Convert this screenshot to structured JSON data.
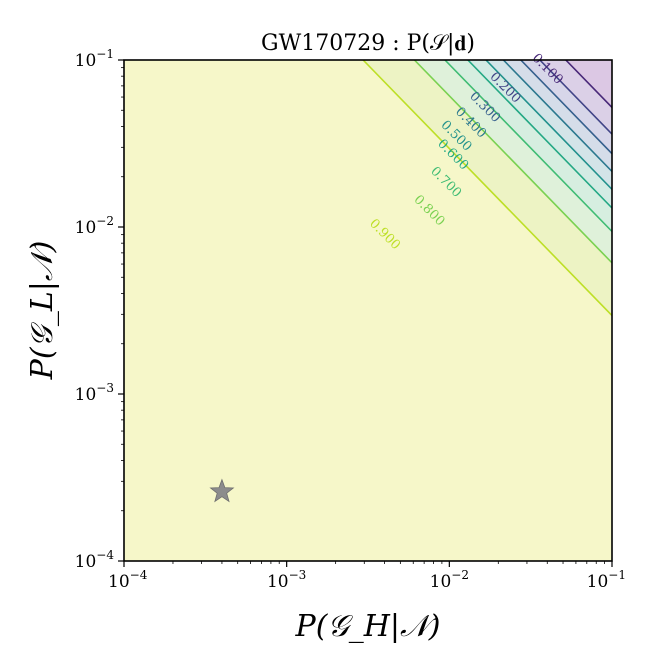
{
  "chart_data": {
    "type": "contour",
    "title": "GW170729 : P(𝒮|𝐝)",
    "xlabel": "P(𝒢_H|𝒩)",
    "ylabel": "P(𝒢_L|𝒩)",
    "xscale": "log",
    "yscale": "log",
    "xlim": [
      0.0001,
      0.1
    ],
    "ylim": [
      0.0001,
      0.1
    ],
    "x_ticks": [
      {
        "value": 0.0001,
        "base": "10",
        "exp": "−4"
      },
      {
        "value": 0.001,
        "base": "10",
        "exp": "−3"
      },
      {
        "value": 0.01,
        "base": "10",
        "exp": "−2"
      },
      {
        "value": 0.1,
        "base": "10",
        "exp": "−1"
      }
    ],
    "y_ticks": [
      {
        "value": 0.0001,
        "base": "10",
        "exp": "−4"
      },
      {
        "value": 0.001,
        "base": "10",
        "exp": "−3"
      },
      {
        "value": 0.01,
        "base": "10",
        "exp": "−2"
      },
      {
        "value": 0.1,
        "base": "10",
        "exp": "−1"
      }
    ],
    "contours": [
      {
        "level": 0.9,
        "label": "0.900",
        "color": "#bddf26",
        "fill": "#edf3c4",
        "x_at_ymax": 0.00295,
        "label_x": 0.004,
        "label_y": 0.009
      },
      {
        "level": 0.8,
        "label": "0.800",
        "color": "#7ad151",
        "fill": "#dff1da",
        "x_at_ymax": 0.0061,
        "label_x": 0.0075,
        "label_y": 0.0125
      },
      {
        "level": 0.7,
        "label": "0.700",
        "color": "#3fbc73",
        "fill": "#d6eee0",
        "x_at_ymax": 0.0094,
        "label_x": 0.0095,
        "label_y": 0.0185
      },
      {
        "level": 0.6,
        "label": "0.600",
        "color": "#23a884",
        "fill": "#d3ebe4",
        "x_at_ymax": 0.013,
        "label_x": 0.0105,
        "label_y": 0.027
      },
      {
        "level": 0.5,
        "label": "0.500",
        "color": "#21918c",
        "fill": "#d3e4e8",
        "x_at_ymax": 0.0168,
        "label_x": 0.011,
        "label_y": 0.035
      },
      {
        "level": 0.4,
        "label": "0.400",
        "color": "#2a788e",
        "fill": "#d5dde9",
        "x_at_ymax": 0.0215,
        "label_x": 0.0135,
        "label_y": 0.042
      },
      {
        "level": 0.3,
        "label": "0.300",
        "color": "#355f8d",
        "fill": "#d7d6e9",
        "x_at_ymax": 0.0275,
        "label_x": 0.0165,
        "label_y": 0.052
      },
      {
        "level": 0.2,
        "label": "0.200",
        "color": "#414487",
        "fill": "#dbd0e7",
        "x_at_ymax": 0.036,
        "label_x": 0.022,
        "label_y": 0.068
      },
      {
        "level": 0.1,
        "label": "0.100",
        "color": "#482878",
        "fill": "#dcc8e4",
        "x_at_ymax": 0.052,
        "label_x": 0.04,
        "label_y": 0.088
      }
    ],
    "background_fill": "#f6f7c9",
    "marker": {
      "shape": "star",
      "x": 0.0004,
      "y": 0.00026,
      "color": "#8c8c8c"
    }
  }
}
